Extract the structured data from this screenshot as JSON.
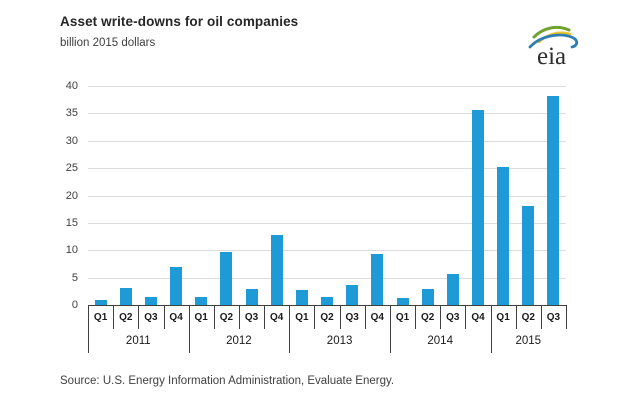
{
  "header": {
    "title": "Asset write-downs for oil companies",
    "subtitle": "billion 2015 dollars",
    "logo_text": "eia"
  },
  "source_line": "Source:  U.S. Energy Information Administration, Evaluate Energy.",
  "colors": {
    "bar": "#1e9bd7",
    "gridline": "#dcdcdc",
    "axis": "#404040",
    "text": "#404040",
    "logo_green": "#6fa22e",
    "logo_yellow": "#e9c62e",
    "logo_blue": "#2e7eb3"
  },
  "chart_data": {
    "type": "bar",
    "title": "Asset write-downs for oil companies",
    "ylabel": "billion 2015 dollars",
    "ylim": [
      0,
      40
    ],
    "yticks": [
      0,
      5,
      10,
      15,
      20,
      25,
      30,
      35,
      40
    ],
    "grid": "horizontal",
    "legend": "none",
    "groups": [
      {
        "year": "2011",
        "quarters": [
          "Q1",
          "Q2",
          "Q3",
          "Q4"
        ],
        "values": [
          0.9,
          3.2,
          1.4,
          6.9
        ]
      },
      {
        "year": "2012",
        "quarters": [
          "Q1",
          "Q2",
          "Q3",
          "Q4"
        ],
        "values": [
          1.5,
          9.6,
          3.0,
          12.8
        ]
      },
      {
        "year": "2013",
        "quarters": [
          "Q1",
          "Q2",
          "Q3",
          "Q4"
        ],
        "values": [
          2.7,
          1.4,
          3.6,
          9.3
        ]
      },
      {
        "year": "2014",
        "quarters": [
          "Q1",
          "Q2",
          "Q3",
          "Q4"
        ],
        "values": [
          1.3,
          3.0,
          5.6,
          35.6
        ]
      },
      {
        "year": "2015",
        "quarters": [
          "Q1",
          "Q2",
          "Q3"
        ],
        "values": [
          25.2,
          18.1,
          38.2
        ]
      }
    ]
  }
}
